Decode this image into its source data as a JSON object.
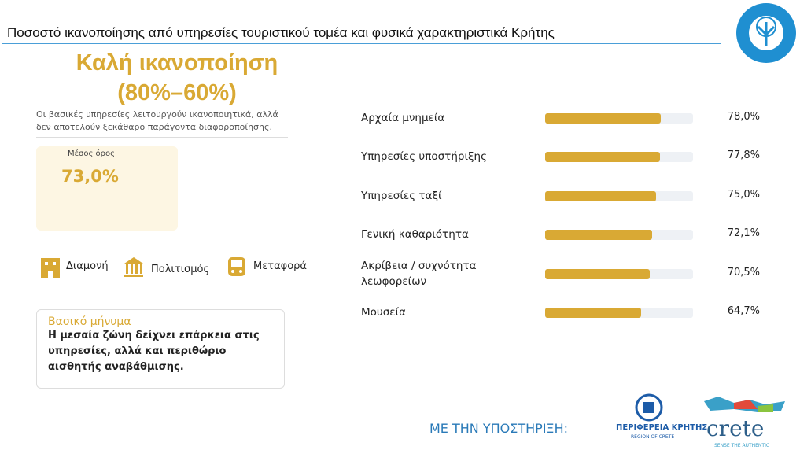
{
  "header": {
    "title": "Ποσοστό ικανοποίησης από υπηρεσίες τουριστικού τομέα και φυσικά χαρακτηριστικά Κρήτης"
  },
  "summary": {
    "heading": "Καλή ικανοποίηση",
    "range": "(80%–60%)",
    "description": "Οι βασικές υπηρεσίες λειτουργούν ικανοποιητικά, αλλά δεν αποτελούν ξεκάθαρο παράγοντα διαφοροποίησης.",
    "average_label": "Μέσος όρος",
    "average_value": "73,0%",
    "sectors": [
      "Διαμονή",
      "Πολιτισμός",
      "Μεταφορά"
    ]
  },
  "message": {
    "title": "Βασικό μήνυμα",
    "text": "Η μεσαία ζώνη δείχνει επάρκεια στις υπηρεσίες, αλλά και περιθώριο αισθητής αναβάθμισης."
  },
  "chart_data": {
    "type": "bar",
    "orientation": "horizontal",
    "categories": [
      "Αρχαία μνημεία",
      "Υπηρεσίες υποστήριξης",
      "Υπηρεσίες ταξί",
      "Γενική καθαριότητα",
      "Ακρίβεια / συχνότητα λεωφορείων",
      "Μουσεία"
    ],
    "values": [
      78.0,
      77.8,
      75.0,
      72.1,
      70.5,
      64.7
    ],
    "value_labels": [
      "78,0%",
      "77,8%",
      "75,0%",
      "72,1%",
      "70,5%",
      "64,7%"
    ],
    "color": "#d9a934",
    "xlim": [
      0,
      100
    ]
  },
  "footer": {
    "support": "ΜΕ ΤΗΝ ΥΠΟΣΤΗΡΙΞΗ:",
    "region_gr": "ΠΕΡΙΦΕΡΕΙΑ ΚΡΗΤΗΣ",
    "region_en": "REGION OF CRETE",
    "brand": "crete",
    "tagline": "SENSE THE AUTHENTIC"
  }
}
